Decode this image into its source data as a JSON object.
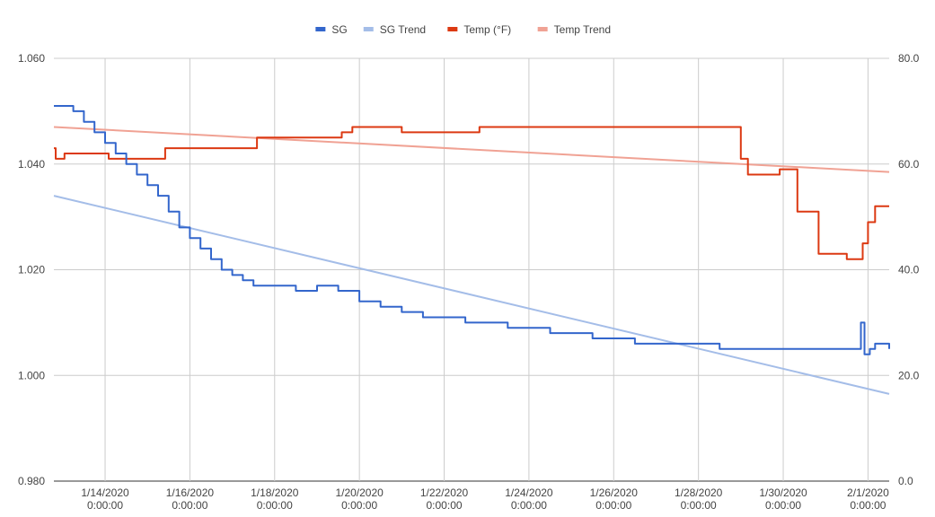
{
  "chart_data": {
    "type": "line",
    "title": "",
    "xlabel": "",
    "ylabel_left": "",
    "ylabel_right": "",
    "legend_position": "top-center",
    "grid": true,
    "x_range": [
      "1/12/2020 19:00",
      "2/1/2020 12:00"
    ],
    "y_left_range": [
      0.98,
      1.06
    ],
    "y_right_range": [
      0,
      80
    ],
    "y_left_ticks": [
      "1.060",
      "1.040",
      "1.020",
      "1.000",
      "0.980"
    ],
    "y_right_ticks": [
      "80.0",
      "60.0",
      "40.0",
      "20.0",
      "0.0"
    ],
    "x_ticks": [
      {
        "date": "1/14/2020",
        "time": "0:00:00",
        "x": "1/14/2020 0:00"
      },
      {
        "date": "1/16/2020",
        "time": "0:00:00",
        "x": "1/16/2020 0:00"
      },
      {
        "date": "1/18/2020",
        "time": "0:00:00",
        "x": "1/18/2020 0:00"
      },
      {
        "date": "1/20/2020",
        "time": "0:00:00",
        "x": "1/20/2020 0:00"
      },
      {
        "date": "1/22/2020",
        "time": "0:00:00",
        "x": "1/22/2020 0:00"
      },
      {
        "date": "1/24/2020",
        "time": "0:00:00",
        "x": "1/24/2020 0:00"
      },
      {
        "date": "1/26/2020",
        "time": "0:00:00",
        "x": "1/26/2020 0:00"
      },
      {
        "date": "1/28/2020",
        "time": "0:00:00",
        "x": "1/28/2020 0:00"
      },
      {
        "date": "1/30/2020",
        "time": "0:00:00",
        "x": "1/30/2020 0:00"
      },
      {
        "date": "2/1/2020",
        "time": "0:00:00",
        "x": "2/1/2020 0:00"
      }
    ],
    "series": [
      {
        "name": "SG",
        "color": "#3366cc",
        "axis": "left",
        "points": [
          [
            "1/12/2020 19:00",
            1.051
          ],
          [
            "1/13/2020 6:00",
            1.05
          ],
          [
            "1/13/2020 12:00",
            1.048
          ],
          [
            "1/13/2020 18:00",
            1.046
          ],
          [
            "1/14/2020 0:00",
            1.044
          ],
          [
            "1/14/2020 6:00",
            1.042
          ],
          [
            "1/14/2020 12:00",
            1.04
          ],
          [
            "1/14/2020 18:00",
            1.038
          ],
          [
            "1/15/2020 0:00",
            1.036
          ],
          [
            "1/15/2020 6:00",
            1.034
          ],
          [
            "1/15/2020 12:00",
            1.031
          ],
          [
            "1/15/2020 18:00",
            1.028
          ],
          [
            "1/16/2020 0:00",
            1.026
          ],
          [
            "1/16/2020 6:00",
            1.024
          ],
          [
            "1/16/2020 12:00",
            1.022
          ],
          [
            "1/16/2020 18:00",
            1.02
          ],
          [
            "1/17/2020 0:00",
            1.019
          ],
          [
            "1/17/2020 6:00",
            1.018
          ],
          [
            "1/17/2020 12:00",
            1.017
          ],
          [
            "1/18/2020 0:00",
            1.017
          ],
          [
            "1/18/2020 12:00",
            1.016
          ],
          [
            "1/19/2020 0:00",
            1.017
          ],
          [
            "1/19/2020 12:00",
            1.016
          ],
          [
            "1/20/2020 0:00",
            1.014
          ],
          [
            "1/20/2020 12:00",
            1.013
          ],
          [
            "1/21/2020 0:00",
            1.012
          ],
          [
            "1/21/2020 12:00",
            1.011
          ],
          [
            "1/22/2020 0:00",
            1.011
          ],
          [
            "1/22/2020 12:00",
            1.01
          ],
          [
            "1/23/2020 0:00",
            1.01
          ],
          [
            "1/23/2020 12:00",
            1.009
          ],
          [
            "1/24/2020 0:00",
            1.009
          ],
          [
            "1/24/2020 12:00",
            1.008
          ],
          [
            "1/25/2020 0:00",
            1.008
          ],
          [
            "1/25/2020 12:00",
            1.007
          ],
          [
            "1/26/2020 0:00",
            1.007
          ],
          [
            "1/26/2020 12:00",
            1.006
          ],
          [
            "1/27/2020 0:00",
            1.006
          ],
          [
            "1/27/2020 12:00",
            1.006
          ],
          [
            "1/28/2020 0:00",
            1.006
          ],
          [
            "1/28/2020 12:00",
            1.005
          ],
          [
            "1/29/2020 0:00",
            1.005
          ],
          [
            "1/30/2020 0:00",
            1.005
          ],
          [
            "1/31/2020 0:00",
            1.005
          ],
          [
            "1/31/2020 18:00",
            1.005
          ],
          [
            "1/31/2020 20:00",
            1.01
          ],
          [
            "1/31/2020 22:00",
            1.004
          ],
          [
            "2/1/2020 1:00",
            1.005
          ],
          [
            "2/1/2020 4:00",
            1.006
          ],
          [
            "2/1/2020 12:00",
            1.005
          ]
        ]
      },
      {
        "name": "SG Trend",
        "color": "#a4bde8",
        "axis": "left",
        "points": [
          [
            "1/12/2020 19:00",
            1.034
          ],
          [
            "2/1/2020 12:00",
            0.9965
          ]
        ]
      },
      {
        "name": "Temp (°F)",
        "color": "#dc3912",
        "axis": "right",
        "points": [
          [
            "1/12/2020 19:00",
            63
          ],
          [
            "1/12/2020 20:00",
            61
          ],
          [
            "1/13/2020 0:00",
            61
          ],
          [
            "1/13/2020 1:00",
            62
          ],
          [
            "1/13/2020 12:00",
            62
          ],
          [
            "1/14/2020 0:00",
            62
          ],
          [
            "1/14/2020 2:00",
            61
          ],
          [
            "1/15/2020 0:00",
            61
          ],
          [
            "1/15/2020 8:00",
            61
          ],
          [
            "1/15/2020 10:00",
            63
          ],
          [
            "1/16/2020 0:00",
            63
          ],
          [
            "1/17/2020 0:00",
            63
          ],
          [
            "1/17/2020 12:00",
            63
          ],
          [
            "1/17/2020 14:00",
            65
          ],
          [
            "1/18/2020 12:00",
            65
          ],
          [
            "1/19/2020 0:00",
            65
          ],
          [
            "1/19/2020 12:00",
            65
          ],
          [
            "1/19/2020 14:00",
            66
          ],
          [
            "1/19/2020 20:00",
            67
          ],
          [
            "1/20/2020 12:00",
            67
          ],
          [
            "1/21/2020 0:00",
            66
          ],
          [
            "1/22/2020 0:00",
            66
          ],
          [
            "1/22/2020 18:00",
            66
          ],
          [
            "1/22/2020 20:00",
            67
          ],
          [
            "1/24/2020 0:00",
            67
          ],
          [
            "1/26/2020 0:00",
            67
          ],
          [
            "1/28/2020 0:00",
            67
          ],
          [
            "1/28/2020 22:00",
            67
          ],
          [
            "1/29/2020 0:00",
            61
          ],
          [
            "1/29/2020 4:00",
            58
          ],
          [
            "1/29/2020 20:00",
            58
          ],
          [
            "1/29/2020 22:00",
            59
          ],
          [
            "1/30/2020 6:00",
            59
          ],
          [
            "1/30/2020 8:00",
            51
          ],
          [
            "1/30/2020 18:00",
            51
          ],
          [
            "1/30/2020 20:00",
            43
          ],
          [
            "1/31/2020 12:00",
            42
          ],
          [
            "1/31/2020 18:00",
            42
          ],
          [
            "1/31/2020 21:00",
            45
          ],
          [
            "2/1/2020 0:00",
            49
          ],
          [
            "2/1/2020 4:00",
            52
          ],
          [
            "2/1/2020 12:00",
            52
          ]
        ]
      },
      {
        "name": "Temp Trend",
        "color": "#f0a294",
        "axis": "right",
        "points": [
          [
            "1/12/2020 19:00",
            67
          ],
          [
            "2/1/2020 12:00",
            58.5
          ]
        ]
      }
    ]
  }
}
